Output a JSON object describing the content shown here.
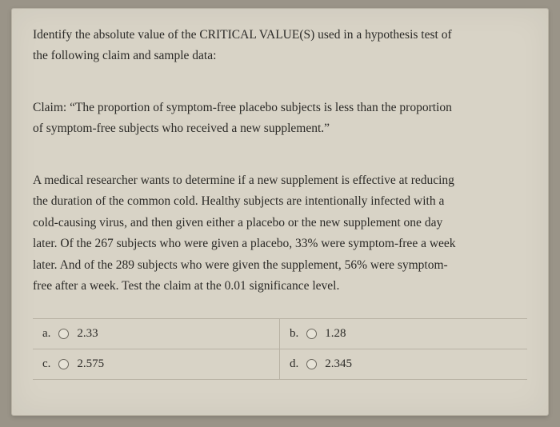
{
  "card": {
    "bg_color": "#d8d3c6",
    "border_color": "#b8b2a4",
    "text_color": "#2b2a27",
    "font_family": "Georgia",
    "body_fontsize": 15.5
  },
  "question": {
    "intro_line1": "Identify the absolute value of the CRITICAL VALUE(S) used in a hypothesis test of",
    "intro_line2": "the following claim and sample data:",
    "claim_line1": "Claim: “The proportion of symptom-free placebo subjects is less than the proportion",
    "claim_line2": "of symptom-free subjects who received a new supplement.”",
    "scenario_line1": "A medical researcher wants to determine if a new supplement is effective at reducing",
    "scenario_line2": "the duration of the common cold. Healthy subjects are intentionally infected with a",
    "scenario_line3": "cold-causing virus, and then given either a placebo or the new supplement one day",
    "scenario_line4": "later. Of the 267 subjects who were given a placebo, 33% were symptom-free a week",
    "scenario_line5": "later. And of the 289 subjects who were given the supplement, 56% were symptom-",
    "scenario_line6": "free after a week. Test the claim at the 0.01 significance level."
  },
  "options": {
    "a": {
      "letter": "a.",
      "value": "2.33"
    },
    "b": {
      "letter": "b.",
      "value": "1.28"
    },
    "c": {
      "letter": "c.",
      "value": "2.575"
    },
    "d": {
      "letter": "d.",
      "value": "2.345"
    }
  }
}
